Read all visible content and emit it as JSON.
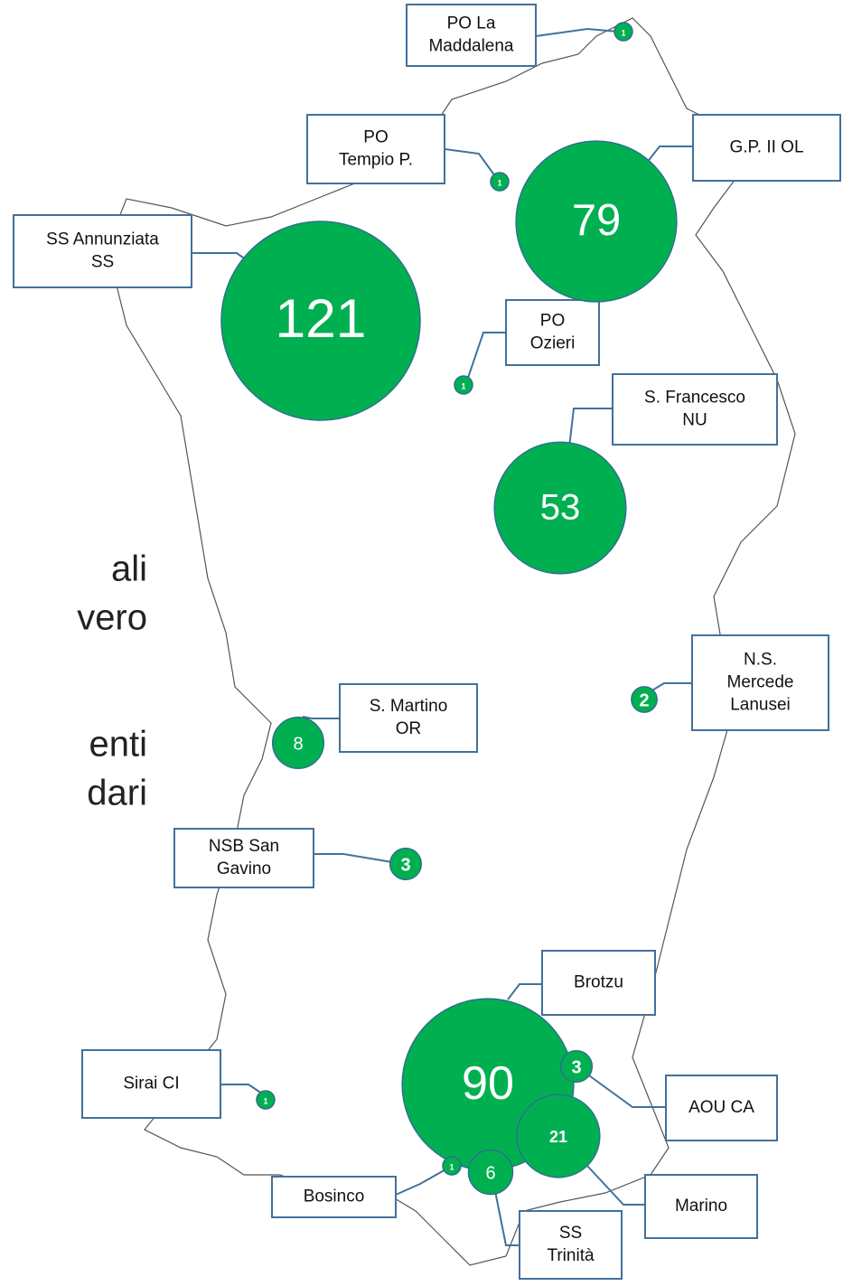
{
  "side_text": [
    "ali",
    "vero",
    "enti",
    "dari"
  ],
  "hospitals": [
    {
      "label": [
        "PO La",
        "Maddalena"
      ],
      "value": 1
    },
    {
      "label": [
        "PO",
        "Tempio P."
      ],
      "value": 1
    },
    {
      "label": [
        "G.P. II OL"
      ],
      "value": 79
    },
    {
      "label": [
        "SS Annunziata",
        "SS"
      ],
      "value": 121
    },
    {
      "label": [
        "PO",
        "Ozieri"
      ],
      "value": 1
    },
    {
      "label": [
        "S. Francesco",
        "NU"
      ],
      "value": 53
    },
    {
      "label": [
        "N.S.",
        "Mercede",
        "Lanusei"
      ],
      "value": 2
    },
    {
      "label": [
        "S. Martino",
        "OR"
      ],
      "value": 8
    },
    {
      "label": [
        "NSB San",
        "Gavino"
      ],
      "value": 3
    },
    {
      "label": [
        "Brotzu"
      ],
      "value": 90
    },
    {
      "label": [
        "Sirai CI"
      ],
      "value": 1
    },
    {
      "label": [
        "AOU CA"
      ],
      "value": 3
    },
    {
      "label": [
        "Marino"
      ],
      "value": 21
    },
    {
      "label": [
        "Bosinco"
      ],
      "value": 1
    },
    {
      "label": [
        "SS",
        "Trinità"
      ],
      "value": 6
    }
  ]
}
